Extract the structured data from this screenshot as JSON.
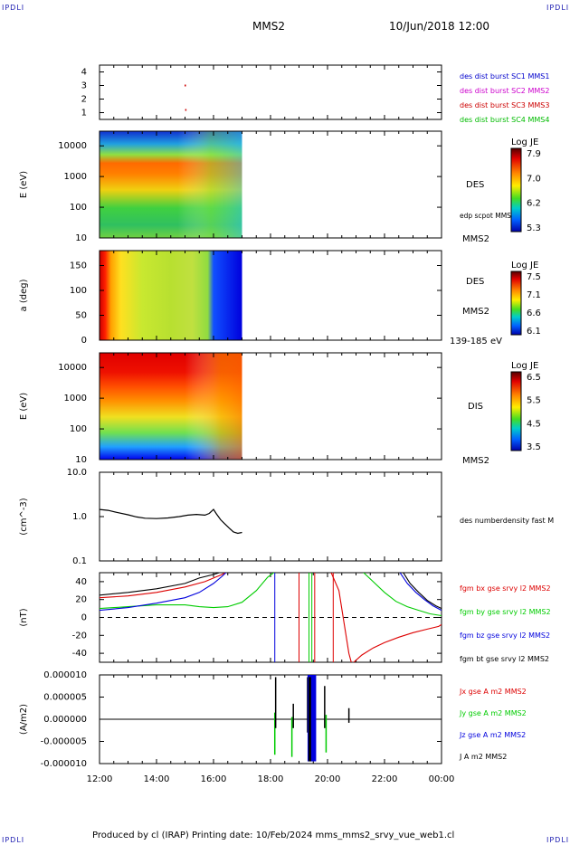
{
  "header": {
    "logo_left": "IPDLI",
    "logo_right": "IPDLI",
    "spacecraft": "MMS2",
    "datetime": "10/Jun/2018 12:00"
  },
  "footer": {
    "text": "Produced by cl (IRAP)   Printing date: 10/Feb/2024   mms_mms2_srvy_vue_web1.cl",
    "logo_left": "IPDLI",
    "logo_right": "IPDLI"
  },
  "time_axis": [
    "12:00",
    "14:00",
    "16:00",
    "18:00",
    "20:00",
    "22:00",
    "00:00"
  ],
  "chart_data": [
    {
      "type": "scatter",
      "panel": "burst",
      "ylim": [
        0.5,
        4.5
      ],
      "yticks": [
        "1",
        "2",
        "3",
        "4"
      ],
      "series": [
        {
          "name": "des dist burst SC1 MMS1",
          "color": "#0000cc",
          "x": [],
          "y": []
        },
        {
          "name": "des dist burst SC2 MMS2",
          "color": "#cc00cc",
          "x": [],
          "y": []
        },
        {
          "name": "des dist burst SC3 MMS3",
          "color": "#cc0000",
          "x": [
            15.0,
            15.02
          ],
          "y": [
            3,
            1.2
          ]
        },
        {
          "name": "des dist burst SC4 MMS4",
          "color": "#00bb00",
          "x": [],
          "y": []
        }
      ]
    },
    {
      "type": "heatmap",
      "panel": "des-energy",
      "ylabel": "E (eV)",
      "yscale": "log",
      "ylim": [
        10,
        30000
      ],
      "yticks": [
        "10",
        "100",
        "1000",
        "10000"
      ],
      "data_end_hour": 17.0,
      "right_labels": [
        "DES",
        "edp scpot MMS2",
        "MMS2"
      ],
      "colorbar": {
        "title": "Log JE",
        "ticks": [
          "7.9",
          "7.0",
          "6.2",
          "5.3"
        ]
      }
    },
    {
      "type": "heatmap",
      "panel": "des-pitch",
      "ylabel": "a (deg)",
      "ylim": [
        0,
        180
      ],
      "yticks": [
        "0",
        "50",
        "100",
        "150"
      ],
      "data_end_hour": 17.0,
      "right_labels": [
        "DES",
        "MMS2",
        "139-185 eV"
      ],
      "colorbar": {
        "title": "Log JE",
        "ticks": [
          "7.5",
          "7.1",
          "6.6",
          "6.1"
        ]
      }
    },
    {
      "type": "heatmap",
      "panel": "dis-energy",
      "ylabel": "E (eV)",
      "yscale": "log",
      "ylim": [
        10,
        30000
      ],
      "yticks": [
        "10",
        "100",
        "1000",
        "10000"
      ],
      "data_end_hour": 17.0,
      "right_labels": [
        "DIS",
        "MMS2"
      ],
      "colorbar": {
        "title": "Log JE",
        "ticks": [
          "6.5",
          "5.5",
          "4.5",
          "3.5"
        ]
      }
    },
    {
      "type": "line",
      "panel": "density",
      "ylabel": "(cm^-3)",
      "yscale": "log",
      "ylim": [
        0.1,
        10
      ],
      "yticks": [
        "0.1",
        "1.0",
        "10.0"
      ],
      "series": [
        {
          "name": "des numberdensity fast M",
          "color": "#000000",
          "x": [
            12.0,
            12.3,
            12.6,
            13.0,
            13.3,
            13.6,
            14.0,
            14.4,
            14.8,
            15.1,
            15.4,
            15.7,
            15.85,
            16.0,
            16.1,
            16.25,
            16.4,
            16.55,
            16.7,
            16.85,
            17.0
          ],
          "y": [
            1.45,
            1.38,
            1.25,
            1.1,
            0.98,
            0.92,
            0.9,
            0.93,
            1.0,
            1.08,
            1.12,
            1.08,
            1.18,
            1.45,
            1.15,
            0.85,
            0.68,
            0.55,
            0.45,
            0.42,
            0.44
          ]
        }
      ]
    },
    {
      "type": "line",
      "panel": "magnetic-field",
      "ylabel": "(nT)",
      "ylim": [
        -50,
        50
      ],
      "yticks": [
        "-40",
        "-20",
        "0",
        "20",
        "40"
      ],
      "series": [
        {
          "name": "fgm bx gse srvy l2 MMS2",
          "color": "#dd0000",
          "x": [
            12.0,
            13.0,
            14.0,
            15.0,
            15.7,
            16.0,
            16.3,
            16.5,
            19.05,
            20.1,
            20.4,
            20.55,
            20.75,
            20.85,
            21.2,
            21.6,
            22.0,
            22.5,
            23.0,
            23.5,
            23.9,
            24.0
          ],
          "y": [
            22,
            24,
            28,
            34,
            40,
            44,
            48,
            52,
            52,
            52,
            30,
            0,
            -40,
            -52,
            -42,
            -34,
            -28,
            -22,
            -17,
            -13,
            -10,
            -8
          ]
        },
        {
          "name": "fgm by gse srvy l2 MMS2",
          "color": "#00cc00",
          "x": [
            12.0,
            13.0,
            14.0,
            15.0,
            15.5,
            16.0,
            16.5,
            17.0,
            17.5,
            17.9,
            18.2,
            21.2,
            21.6,
            22.0,
            22.4,
            22.8,
            23.2,
            23.6,
            24.0
          ],
          "y": [
            10,
            12,
            14,
            14,
            12,
            11,
            12,
            17,
            30,
            45,
            52,
            52,
            40,
            28,
            18,
            12,
            8,
            4,
            2
          ]
        },
        {
          "name": "fgm bz gse srvy l2 MMS2",
          "color": "#0000dd",
          "x": [
            12.0,
            13.0,
            14.0,
            15.0,
            15.5,
            16.0,
            16.3,
            16.5,
            22.5,
            22.8,
            23.1,
            23.4,
            23.7,
            24.0
          ],
          "y": [
            8,
            11,
            16,
            22,
            28,
            38,
            46,
            52,
            52,
            38,
            28,
            20,
            13,
            8
          ]
        },
        {
          "name": "fgm bt gse srvy l2 MMS2",
          "color": "#000000",
          "x": [
            12.0,
            13.0,
            14.0,
            15.0,
            15.5,
            16.0,
            16.3,
            16.5,
            22.6,
            22.9,
            23.2,
            23.5,
            23.8,
            24.0
          ],
          "y": [
            25,
            28,
            32,
            38,
            44,
            48,
            51,
            53,
            53,
            38,
            28,
            19,
            13,
            10
          ]
        }
      ],
      "reference_line": 0
    },
    {
      "type": "line",
      "panel": "current-density",
      "ylabel": "(A/m2)",
      "ylim": [
        -1e-05,
        1e-05
      ],
      "yticks": [
        "-0.000010",
        "-0.000005",
        "0.000000",
        "0.000005",
        "0.000010"
      ],
      "series": [
        {
          "name": "Jx gse A m2 MMS2",
          "color": "#dd0000"
        },
        {
          "name": "Jy gse A m2 MMS2",
          "color": "#00cc00"
        },
        {
          "name": "Jz gse A m2 MMS2",
          "color": "#0000dd"
        },
        {
          "name": "J A m2 MMS2",
          "color": "#000000"
        }
      ]
    }
  ]
}
